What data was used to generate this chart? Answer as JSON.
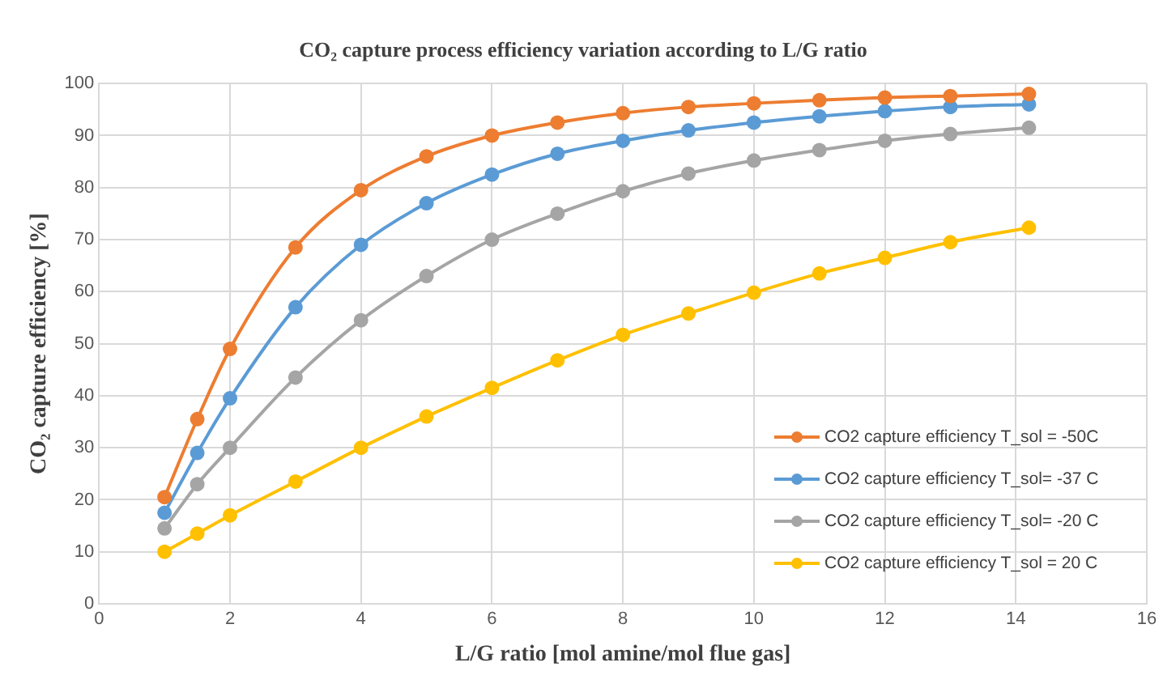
{
  "chart_data": {
    "type": "line",
    "title": "CO₂ capture process efficiency variation according to L/G ratio",
    "xlabel": "L/G ratio [mol amine/mol flue gas]",
    "ylabel": "CO₂ capture efficiency [%]",
    "x": [
      1,
      1.5,
      2,
      3,
      4,
      5,
      6,
      7,
      8,
      9,
      10,
      11,
      12,
      13,
      14.2
    ],
    "series": [
      {
        "name": "CO2 capture efficiency T_sol = -50C",
        "color": "#ed7d31",
        "values": [
          20.5,
          35.5,
          49,
          68.5,
          79.5,
          86,
          90,
          92.5,
          94.3,
          95.5,
          96.2,
          96.8,
          97.3,
          97.6,
          98
        ]
      },
      {
        "name": "CO2 capture efficiency T_sol= -37 C",
        "color": "#5b9bd5",
        "values": [
          17.5,
          29,
          39.5,
          57,
          69,
          77,
          82.5,
          86.5,
          89,
          91,
          92.5,
          93.7,
          94.7,
          95.5,
          96
        ]
      },
      {
        "name": "CO2 capture efficiency T_sol= -20 C",
        "color": "#a5a5a5",
        "values": [
          14.5,
          23,
          30,
          43.5,
          54.5,
          63,
          70,
          75,
          79.3,
          82.7,
          85.2,
          87.2,
          89,
          90.3,
          91.5
        ]
      },
      {
        "name": "CO2 capture efficiency T_sol = 20 C",
        "color": "#ffc000",
        "values": [
          10,
          13.5,
          17,
          23.5,
          30,
          36,
          41.5,
          46.8,
          51.7,
          55.8,
          59.8,
          63.5,
          66.5,
          69.5,
          72.3
        ]
      }
    ],
    "xlim": [
      0,
      16
    ],
    "xticks": [
      0,
      2,
      4,
      6,
      8,
      10,
      12,
      14,
      16
    ],
    "ylim": [
      0,
      100
    ],
    "yticks": [
      0,
      10,
      20,
      30,
      40,
      50,
      60,
      70,
      80,
      90,
      100
    ],
    "grid": true,
    "legend": "bottom right",
    "marker": "circle",
    "line_style": "solid"
  }
}
